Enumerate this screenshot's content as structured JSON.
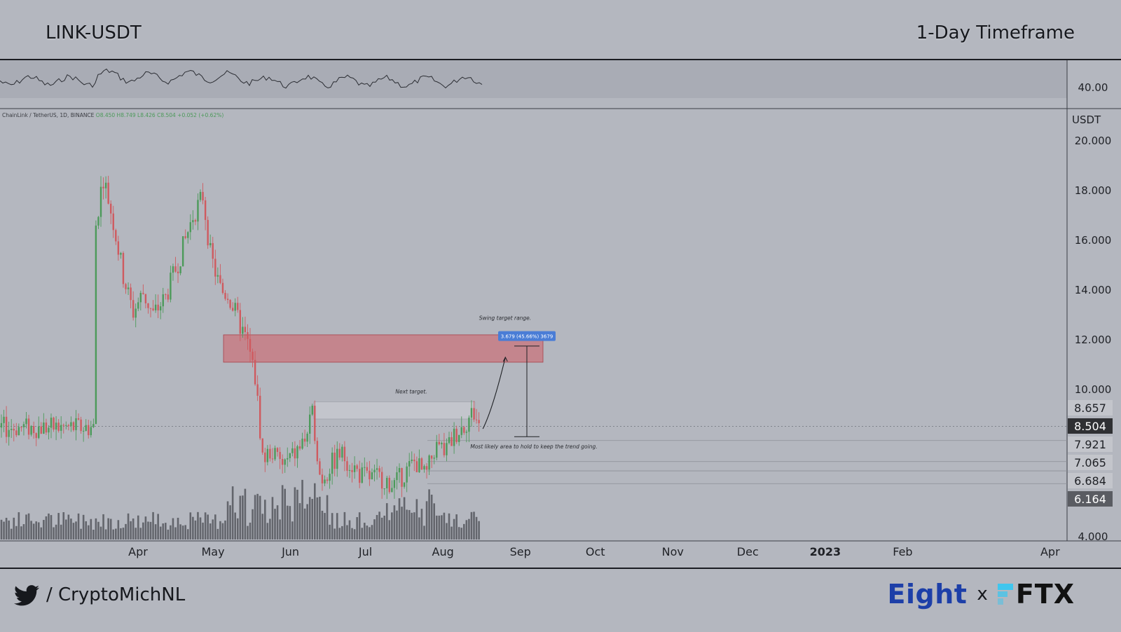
{
  "header": {
    "pair": "LINK-USDT",
    "timeframe": "1-Day Timeframe"
  },
  "footer": {
    "handle": "/ CryptoMichNL",
    "brand_eight": "Eight",
    "brand_x": "x",
    "brand_ftx": "FTX"
  },
  "colors": {
    "background": "#b4b7bf",
    "up_candle": "#4c9a5a",
    "down_candle": "#cf5a5f",
    "resistance_zone": "#c9747c",
    "target_label": "#4a7dd6",
    "last_price_tag": "#2f3033",
    "brand_blue": "#1d3fa8",
    "ftx_blue": "#3fc6ee"
  },
  "icons": {
    "twitter": "twitter-icon",
    "ftx": "ftx-logo-icon"
  },
  "chart_data": {
    "type": "candlestick",
    "symbol_info": "ChainLink / TetherUS, 1D, BINANCE",
    "ohlc_readout": "O8.450 H8.749 L8.426 C8.504 +0.052 (+0.62%)",
    "y_axis_unit": "USDT",
    "y_ticks": [
      "20.000",
      "18.000",
      "16.000",
      "14.000",
      "12.000",
      "10.000",
      "4.000"
    ],
    "ylim": [
      4.0,
      21.0
    ],
    "x_ticks": [
      "Apr",
      "May",
      "Jun",
      "Jul",
      "Aug",
      "Sep",
      "Oct",
      "Nov",
      "Dec",
      "2023",
      "Feb",
      "Apr"
    ],
    "price_labels": [
      "8.657",
      "8.504",
      "7.921",
      "7.065",
      "6.684",
      "6.164"
    ],
    "last_price": "8.504",
    "rsi_label": "40.00",
    "zones": [
      {
        "name": "swing-target-zone",
        "from": 11.1,
        "to": 12.2
      },
      {
        "name": "next-target-zone",
        "from": 8.8,
        "to": 9.5
      }
    ],
    "annotations": {
      "swing_target": "Swing target range.",
      "measure": "3.679 (45.66%) 3679",
      "next_target": "Next target.",
      "hold_area": "Most likely area to hold to keep the trend going."
    },
    "price_path": [
      [
        "2022-03-15",
        16.5
      ],
      [
        "2022-03-18",
        18.6
      ],
      [
        "2022-03-22",
        16.8
      ],
      [
        "2022-03-26",
        14.6
      ],
      [
        "2022-03-30",
        13.1
      ],
      [
        "2022-04-03",
        13.9
      ],
      [
        "2022-04-07",
        13.0
      ],
      [
        "2022-04-12",
        13.7
      ],
      [
        "2022-04-18",
        15.4
      ],
      [
        "2022-04-23",
        17.0
      ],
      [
        "2022-04-27",
        17.8
      ],
      [
        "2022-04-30",
        15.4
      ],
      [
        "2022-05-04",
        14.0
      ],
      [
        "2022-05-07",
        13.8
      ],
      [
        "2022-05-11",
        12.8
      ],
      [
        "2022-05-15",
        11.8
      ],
      [
        "2022-05-18",
        10.4
      ],
      [
        "2022-05-21",
        7.1
      ],
      [
        "2022-05-24",
        7.5
      ],
      [
        "2022-05-29",
        6.9
      ],
      [
        "2022-06-03",
        7.4
      ],
      [
        "2022-06-07",
        8.0
      ],
      [
        "2022-06-10",
        9.0
      ],
      [
        "2022-06-13",
        6.3
      ],
      [
        "2022-06-17",
        6.9
      ],
      [
        "2022-06-21",
        7.4
      ],
      [
        "2022-06-25",
        7.0
      ],
      [
        "2022-06-29",
        6.5
      ],
      [
        "2022-07-03",
        6.4
      ],
      [
        "2022-07-08",
        6.4
      ],
      [
        "2022-07-12",
        6.1
      ],
      [
        "2022-07-16",
        6.5
      ],
      [
        "2022-07-21",
        7.1
      ],
      [
        "2022-07-25",
        6.4
      ],
      [
        "2022-07-29",
        7.7
      ],
      [
        "2022-08-02",
        7.5
      ],
      [
        "2022-08-06",
        8.2
      ],
      [
        "2022-08-10",
        8.6
      ],
      [
        "2022-08-13",
        9.1
      ],
      [
        "2022-08-16",
        8.45
      ]
    ],
    "projection": [
      [
        "2022-08-17",
        8.4
      ],
      [
        "2022-08-21",
        9.5
      ],
      [
        "2022-08-26",
        11.3
      ]
    ]
  }
}
